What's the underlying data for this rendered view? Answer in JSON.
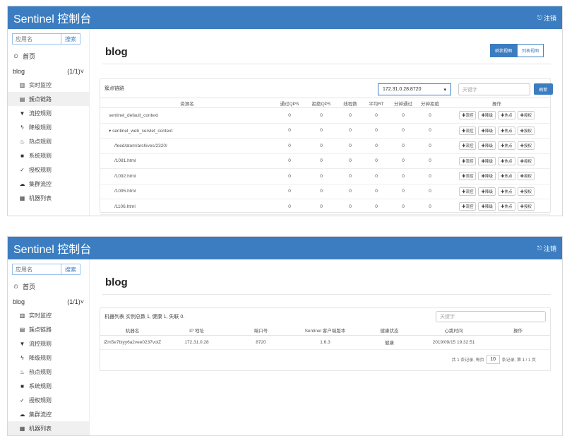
{
  "app": {
    "brand": "Sentinel 控制台",
    "logout": "注销",
    "search_placeholder": "应用名",
    "search_button": "搜索",
    "home": "首页",
    "app_name": "blog",
    "app_count": "(1/1)"
  },
  "menu": [
    "实时监控",
    "簇点链路",
    "流控规则",
    "降级规则",
    "热点规则",
    "系统规则",
    "授权规则",
    "集群流控",
    "机器列表"
  ],
  "shot1": {
    "title": "blog",
    "tree_view": "树状视图",
    "list_view": "列表视图",
    "panel_title": "簇点链路",
    "ip_select": "172.31.0.28:8720",
    "keyword_placeholder": "关键字",
    "search_button": "刷新",
    "headers": [
      "资源名",
      "通过QPS",
      "拒绝QPS",
      "线程数",
      "平均RT",
      "分钟通过",
      "分钟拒绝",
      "操作"
    ],
    "op_labels": [
      "流控",
      "降级",
      "热点",
      "授权"
    ],
    "rows": [
      {
        "name": "sentinel_default_context",
        "vals": [
          "0",
          "0",
          "0",
          "0",
          "0",
          "0"
        ]
      },
      {
        "name": "▾ sentinel_web_servlet_context",
        "vals": [
          "0",
          "0",
          "0",
          "0",
          "0",
          "0"
        ]
      },
      {
        "name": "/feed/atom/archives/2320/",
        "vals": [
          "0",
          "0",
          "0",
          "0",
          "0",
          "0"
        ]
      },
      {
        "name": "/1081.html",
        "vals": [
          "0",
          "0",
          "0",
          "0",
          "0",
          "0"
        ]
      },
      {
        "name": "/1092.html",
        "vals": [
          "0",
          "0",
          "0",
          "0",
          "0",
          "0"
        ]
      },
      {
        "name": "/1095.html",
        "vals": [
          "0",
          "0",
          "0",
          "0",
          "0",
          "0"
        ]
      },
      {
        "name": "/1106.html",
        "vals": [
          "0",
          "0",
          "0",
          "0",
          "0",
          "0"
        ]
      }
    ]
  },
  "shot2": {
    "title": "blog",
    "panel_title": "机器列表",
    "summary": "实例总数 1, 健康 1, 失联 0.",
    "keyword_placeholder": "关键字",
    "headers": [
      "机器名",
      "IP 地址",
      "端口号",
      "Sentinel 客户端版本",
      "健康状态",
      "心跳时间",
      "操作"
    ],
    "row": [
      "iZm5e7biyy6a2vee0237voiZ",
      "172.31.0.28",
      "8720",
      "1.6.3",
      "健康",
      "2019/09/15 19:32:51",
      ""
    ],
    "pager_prefix": "共 1 条记录, 每页",
    "page_size": "10",
    "pager_suffix": "条记录, 第 1 / 1 页"
  }
}
